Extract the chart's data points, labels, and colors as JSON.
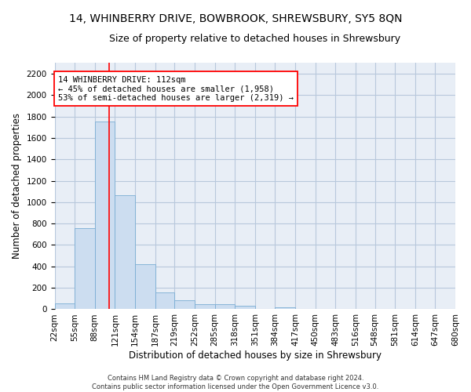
{
  "title": "14, WHINBERRY DRIVE, BOWBROOK, SHREWSBURY, SY5 8QN",
  "subtitle": "Size of property relative to detached houses in Shrewsbury",
  "xlabel": "Distribution of detached houses by size in Shrewsbury",
  "ylabel": "Number of detached properties",
  "bar_color": "#ccddf0",
  "bar_edge_color": "#7aadd4",
  "grid_color": "#b8c8dc",
  "background_color": "#e8eef6",
  "annotation_text": "14 WHINBERRY DRIVE: 112sqm\n← 45% of detached houses are smaller (1,958)\n53% of semi-detached houses are larger (2,319) →",
  "annotation_box_color": "white",
  "annotation_box_edge": "red",
  "vline_x": 112,
  "vline_color": "red",
  "bin_edges": [
    22,
    55,
    88,
    121,
    154,
    187,
    219,
    252,
    285,
    318,
    351,
    384,
    417,
    450,
    483,
    516,
    548,
    581,
    614,
    647,
    680
  ],
  "bar_heights": [
    55,
    760,
    1750,
    1065,
    420,
    160,
    85,
    50,
    45,
    30,
    0,
    20,
    0,
    0,
    0,
    0,
    0,
    0,
    0,
    0
  ],
  "ylim": [
    0,
    2300
  ],
  "yticks": [
    0,
    200,
    400,
    600,
    800,
    1000,
    1200,
    1400,
    1600,
    1800,
    2000,
    2200
  ],
  "footer_text": "Contains HM Land Registry data © Crown copyright and database right 2024.\nContains public sector information licensed under the Open Government Licence v3.0.",
  "fig_bg_color": "white",
  "title_fontsize": 10,
  "subtitle_fontsize": 9,
  "xlabel_fontsize": 8.5,
  "ylabel_fontsize": 8.5,
  "tick_fontsize": 7.5,
  "annot_fontsize": 7.5,
  "footer_fontsize": 6
}
